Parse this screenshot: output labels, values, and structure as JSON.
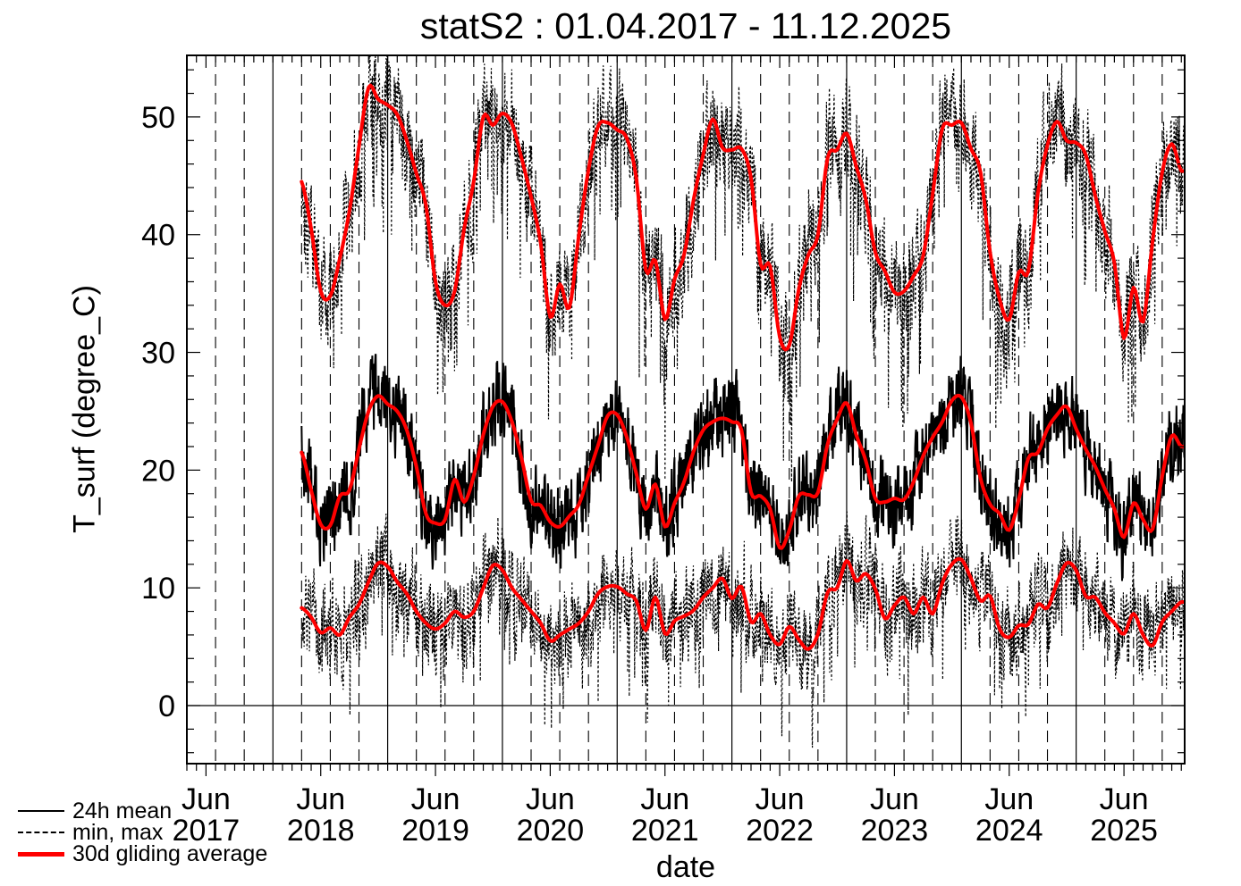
{
  "title": "statS2 : 01.04.2017 - 11.12.2025",
  "axes": {
    "ylabel": "T_surf (degree_C)",
    "xlabel": "date",
    "y_ticks": [
      0,
      10,
      20,
      30,
      40,
      50
    ],
    "y_minor_step": 2,
    "x_ticks": [
      {
        "month": "Jun",
        "year": "2017"
      },
      {
        "month": "Jun",
        "year": "2018"
      },
      {
        "month": "Jun",
        "year": "2019"
      },
      {
        "month": "Jun",
        "year": "2020"
      },
      {
        "month": "Jun",
        "year": "2021"
      },
      {
        "month": "Jun",
        "year": "2022"
      },
      {
        "month": "Jun",
        "year": "2023"
      },
      {
        "month": "Jun",
        "year": "2024"
      },
      {
        "month": "Jun",
        "year": "2025"
      }
    ]
  },
  "legend": [
    {
      "label": "24h mean",
      "style": "solid-thin-black"
    },
    {
      "label": "min, max",
      "style": "dashed-black"
    },
    {
      "label": "30d gliding average",
      "style": "solid-thick-red"
    }
  ],
  "colors": {
    "series_black": "#000000",
    "average_red": "#ff0000",
    "background": "#ffffff"
  },
  "chart_data": {
    "type": "line",
    "title": "statS2 : 01.04.2017 - 11.12.2025",
    "xlabel": "date",
    "ylabel": "T_surf (degree_C)",
    "x_range": [
      "2017-04-01",
      "2025-12-11"
    ],
    "y_range": [
      -4.9,
      55.2
    ],
    "grid": "vertical solid lines at each Jan 1, vertical dashed lines at Apr/Jul/Oct 1, horizontal solid line at 0",
    "series": [
      {
        "name": "24h mean",
        "style": "solid",
        "color": "#000000",
        "description": "noisy daily mean temperature"
      },
      {
        "name": "min, max",
        "style": "dashed",
        "color": "#000000",
        "description": "noisy daily minimum and maximum temperature"
      },
      {
        "name": "30d gliding average",
        "style": "solid thick",
        "color": "#ff0000",
        "description": "smoothed 30-day averages of mean, min and max"
      }
    ],
    "data_start": "2018-04",
    "data_end": "2025-12-11",
    "monthly_cadence": "values below are monthly anchors from 2018-04 through 2025-12 read from the red 30d gliding average curves",
    "monthly": {
      "max_avg": [
        44.5,
        40.5,
        35.2,
        34.8,
        38,
        42,
        47.5,
        52.5,
        51.5,
        51,
        50.2,
        48,
        45.2,
        42.5,
        36,
        34,
        35.2,
        40.5,
        44.5,
        50,
        49.3,
        50.3,
        49.4,
        46.5,
        43.2,
        39.3,
        33,
        35.8,
        33.8,
        40,
        45.5,
        49.2,
        49.5,
        48.9,
        48.2,
        44.8,
        37,
        37.8,
        32.8,
        36.2,
        38.3,
        43,
        46.8,
        49.8,
        47.4,
        47.2,
        47.3,
        44.8,
        37.5,
        37.3,
        31.3,
        30.6,
        35.4,
        38.3,
        40,
        46.5,
        47.2,
        48.6,
        45.8,
        43,
        38.5,
        36.9,
        35.1,
        35.2,
        36.5,
        38.2,
        43.5,
        49,
        49.3,
        49.5,
        47.3,
        45.3,
        38.5,
        34.5,
        32.8,
        36.8,
        36.9,
        43.5,
        47.6,
        49.6,
        48,
        47.8,
        46.8,
        43.3,
        40.3,
        37.6,
        31.2,
        35.5,
        32.6,
        39.5,
        45.3,
        47.7,
        45.4
      ],
      "mean_avg": [
        21.5,
        18.3,
        15.4,
        15.3,
        17.8,
        18.3,
        21.8,
        25,
        26.3,
        25.6,
        25,
        23.4,
        20.3,
        16.3,
        15.5,
        15.8,
        19.2,
        17.3,
        19.5,
        23,
        25.4,
        25.8,
        24.1,
        21,
        17.4,
        17,
        15.6,
        15.2,
        16.1,
        17.1,
        19.6,
        22.1,
        24.6,
        24.7,
        22.8,
        19.7,
        16.7,
        18.8,
        15.2,
        17.2,
        19,
        21.6,
        23.4,
        24.1,
        24.4,
        24.1,
        23.4,
        18.1,
        17.8,
        16.7,
        13.4,
        14.9,
        17.8,
        17.9,
        18.1,
        22.2,
        24.3,
        25.7,
        23,
        20.8,
        17.6,
        17.3,
        17.6,
        17.5,
        19,
        21.2,
        22.8,
        24.1,
        25.9,
        26.2,
        24,
        19.3,
        17.1,
        16.3,
        14.9,
        17.5,
        21,
        21.5,
        23.5,
        24.7,
        25.4,
        23.5,
        21.8,
        20.3,
        18.4,
        16.7,
        14.3,
        17.2,
        15.8,
        15,
        19.5,
        22.9,
        22
      ],
      "min_avg": [
        8.3,
        7.5,
        6.2,
        6.6,
        6,
        7.5,
        8.6,
        10.5,
        12.1,
        11.8,
        10.5,
        9.5,
        8,
        7,
        6.5,
        7,
        8,
        7.5,
        8,
        10,
        11.9,
        11.5,
        10,
        9,
        8,
        7,
        5.5,
        6,
        6.5,
        7,
        8,
        9.5,
        10.1,
        10.1,
        9.5,
        8.9,
        6.4,
        9.2,
        6.1,
        7.2,
        7.6,
        8.1,
        9.2,
        10,
        10.8,
        9.1,
        10.1,
        7.1,
        7.8,
        6,
        5.2,
        6.7,
        5.6,
        4.8,
        6.1,
        9.6,
        10,
        12.3,
        10.6,
        11.2,
        9.9,
        7.4,
        8.5,
        9.2,
        7.8,
        9.2,
        7.8,
        10.4,
        12,
        12.4,
        10.8,
        8.9,
        9.3,
        6.5,
        5.8,
        6.8,
        6.9,
        8.6,
        8.3,
        10.4,
        12.1,
        11.5,
        9.3,
        9.2,
        7.9,
        7,
        6.1,
        7.8,
        6,
        5.1,
        7.1,
        8,
        8.8
      ]
    },
    "daily_noise": {
      "mean_band_halfwidth_degC": 3.5,
      "max_band_halfwidth_degC": 5,
      "min_band_halfwidth_degC": 4,
      "note": "daily curves oscillate strongly around the 30d averages; max spikes clipped at plot top, min spikes reach about -3"
    }
  }
}
